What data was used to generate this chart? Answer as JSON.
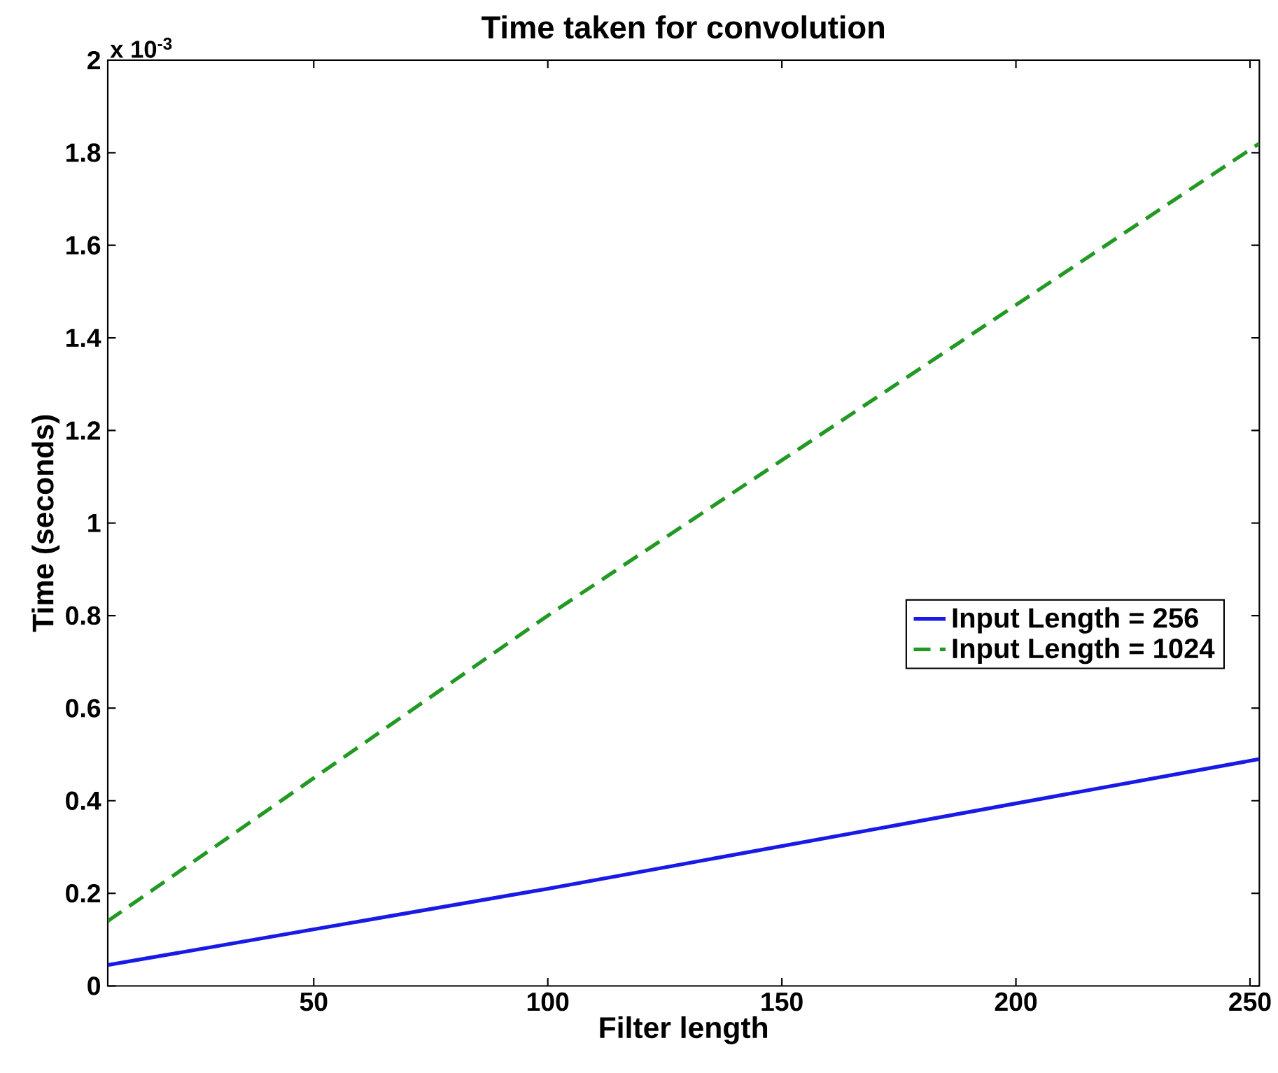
{
  "chart_data": {
    "type": "line",
    "title": "Time taken for convolution",
    "xlabel": "Filter length",
    "ylabel": "Time (seconds)",
    "annotations": [
      "x 10$^{-3}$"
    ],
    "series": [
      {
        "name": "Input Length = 256",
        "color": "#1a1ae6",
        "line_style": "solid",
        "x": [
          6,
          100,
          252
        ],
        "values": [
          0.045,
          0.21,
          0.49
        ]
      },
      {
        "name": "Input Length = 1024",
        "color": "#229922",
        "line_style": "dashed",
        "x": [
          6,
          100,
          252
        ],
        "values": [
          0.14,
          0.8,
          1.82
        ]
      }
    ],
    "xlim": [
      6,
      252
    ],
    "xticks": [
      50,
      100,
      150,
      200,
      250
    ],
    "ylim": [
      0,
      2
    ],
    "yticks": [
      0,
      0.2,
      0.4,
      0.6,
      0.8,
      1,
      1.2,
      1.4,
      1.6,
      1.8,
      2
    ],
    "grid": false,
    "legend": "right"
  }
}
